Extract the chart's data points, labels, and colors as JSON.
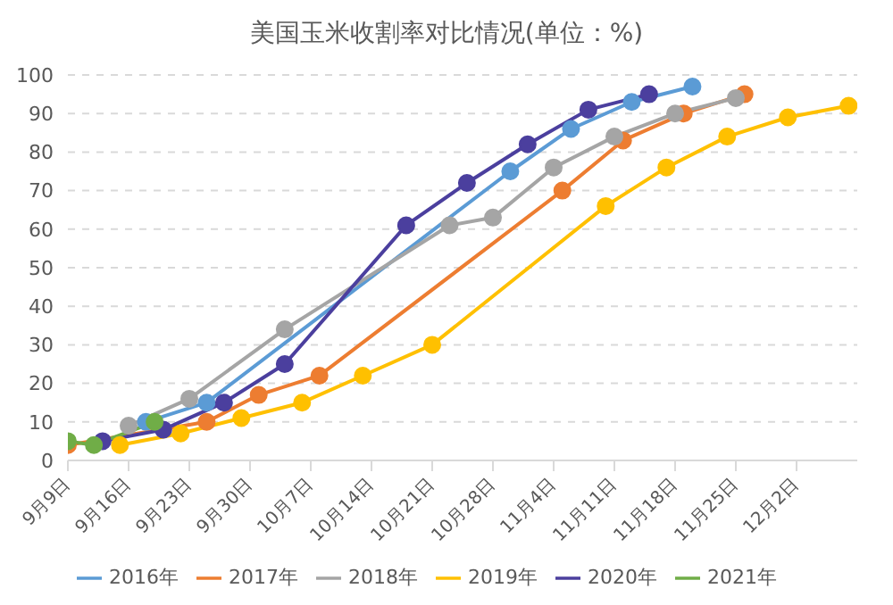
{
  "chart_data": {
    "type": "line",
    "title": "美国玉米收割率对比情况(单位：%)",
    "xlim": [
      "--09-09",
      "--12-09"
    ],
    "xticks": [
      {
        "value": "--09-09",
        "label": "9月9日"
      },
      {
        "value": "--09-16",
        "label": "9月16日"
      },
      {
        "value": "--09-23",
        "label": "9月23日"
      },
      {
        "value": "--09-30",
        "label": "9月30日"
      },
      {
        "value": "--10-07",
        "label": "10月7日"
      },
      {
        "value": "--10-14",
        "label": "10月14日"
      },
      {
        "value": "--10-21",
        "label": "10月21日"
      },
      {
        "value": "--10-28",
        "label": "10月28日"
      },
      {
        "value": "--11-04",
        "label": "11月4日"
      },
      {
        "value": "--11-11",
        "label": "11月11日"
      },
      {
        "value": "--11-18",
        "label": "11月18日"
      },
      {
        "value": "--11-25",
        "label": "11月25日"
      },
      {
        "value": "--12-02",
        "label": "12月2日"
      }
    ],
    "ylim": [
      0,
      100
    ],
    "yticks": [
      0,
      10,
      20,
      30,
      40,
      50,
      60,
      70,
      80,
      90,
      100
    ],
    "grid": "y",
    "legend": "bottom",
    "marker": "circle",
    "line_style": "solid",
    "series": [
      {
        "name": "2016年",
        "color": "#5b9bd5",
        "x": [
          "--09-18",
          "--09-25",
          "--10-30",
          "--11-06",
          "--11-13",
          "--11-20"
        ],
        "values": [
          10,
          15,
          75,
          86,
          93,
          97
        ]
      },
      {
        "name": "2017年",
        "color": "#ed7d31",
        "x": [
          "--09-09",
          "--09-25",
          "--10-01",
          "--10-08",
          "--11-05",
          "--11-12",
          "--11-19",
          "--11-26"
        ],
        "values": [
          4,
          10,
          17,
          22,
          70,
          83,
          90,
          95
        ]
      },
      {
        "name": "2018年",
        "color": "#a5a5a5",
        "x": [
          "--09-16",
          "--09-23",
          "--10-04",
          "--10-23",
          "--10-28",
          "--11-04",
          "--11-11",
          "--11-18",
          "--11-25"
        ],
        "values": [
          9,
          16,
          34,
          61,
          63,
          76,
          84,
          90,
          94
        ]
      },
      {
        "name": "2019年",
        "color": "#ffc000",
        "x": [
          "--09-15",
          "--09-22",
          "--09-29",
          "--10-06",
          "--10-13",
          "--10-21",
          "--11-10",
          "--11-17",
          "--11-24",
          "--12-01",
          "--12-08"
        ],
        "values": [
          4,
          7,
          11,
          15,
          22,
          30,
          66,
          76,
          84,
          89,
          92
        ]
      },
      {
        "name": "2020年",
        "color": "#4b3f9e",
        "x": [
          "--09-13",
          "--09-20",
          "--09-27",
          "--10-04",
          "--10-18",
          "--10-25",
          "--11-01",
          "--11-08",
          "--11-15"
        ],
        "values": [
          5,
          8,
          15,
          25,
          61,
          72,
          82,
          91,
          95
        ]
      },
      {
        "name": "2021年",
        "color": "#70ad47",
        "x": [
          "--09-09",
          "--09-12",
          "--09-19"
        ],
        "values": [
          5,
          4,
          10
        ]
      }
    ]
  }
}
